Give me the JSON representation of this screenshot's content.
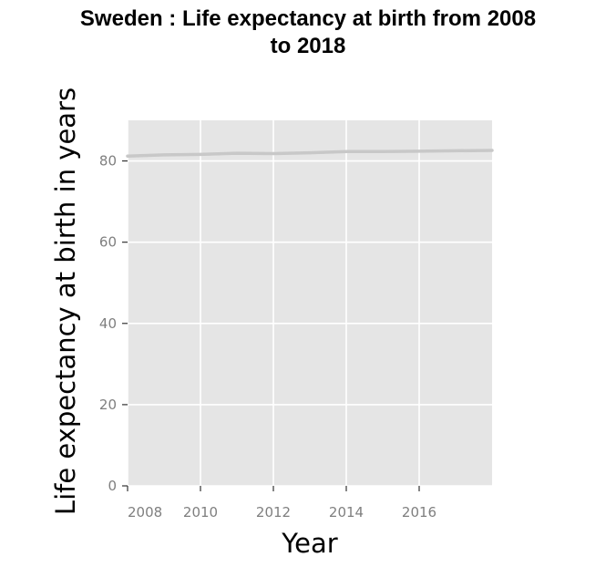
{
  "chart_data": {
    "type": "line",
    "title_lines": [
      "Sweden : Life expectancy at birth from 2008",
      "to 2018"
    ],
    "xlabel": "Year",
    "ylabel": "Life expectancy at birth in years",
    "xlim": [
      2008,
      2018
    ],
    "ylim": [
      0,
      90
    ],
    "x_ticks": [
      2008,
      2010,
      2012,
      2014,
      2016
    ],
    "y_ticks": [
      0,
      20,
      40,
      60,
      80
    ],
    "grid": true,
    "legend": "none",
    "colors": {
      "panel": "#e5e5e5",
      "grid": "#ffffff",
      "line": "#c8c8c8",
      "tick": "#7f7f7f"
    },
    "series": [
      {
        "x": [
          2008,
          2009,
          2010,
          2011,
          2012,
          2013,
          2014,
          2015,
          2016,
          2017,
          2018
        ],
        "values": [
          81.2,
          81.5,
          81.6,
          81.9,
          81.8,
          82.0,
          82.3,
          82.3,
          82.4,
          82.5,
          82.6
        ]
      }
    ]
  }
}
